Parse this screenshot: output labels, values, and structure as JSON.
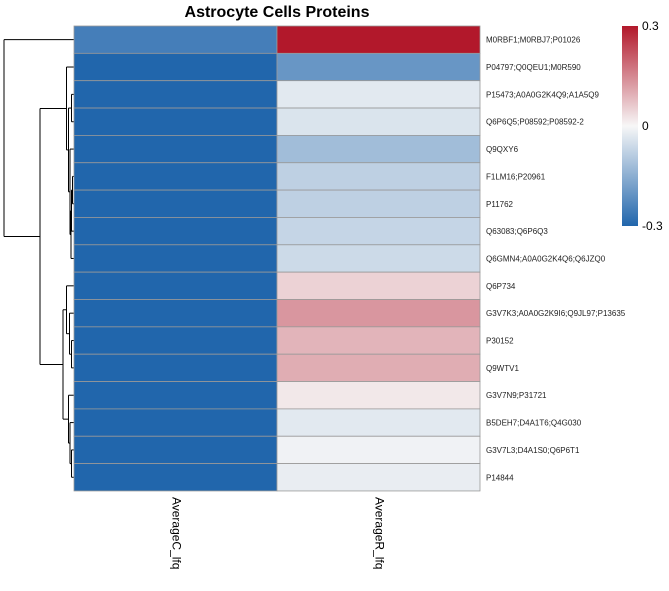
{
  "chart_data": {
    "type": "heatmap",
    "title": "Astrocyte Cells Proteins",
    "columns": [
      "AverageC_lfq",
      "AverageR_lfq"
    ],
    "rows": [
      "M0RBF1;M0RBJ7;P01026",
      "P04797;Q0QEU1;M0R590",
      "P15473;A0A0G2K4Q9;A1A5Q9",
      "Q6P6Q5;P08592;P08592-2",
      "Q9QXY6",
      "F1LM16;P20961",
      "P11762",
      "Q63083;Q6P6Q3",
      "Q6GMN4;A0A0G2K4Q6;Q6JZQ0",
      "Q6P734",
      "G3V7K3;A0A0G2K9I6;Q9JL97;P13635",
      "P30152",
      "Q9WTV1",
      "G3V7N9;P31721",
      "B5DEH7;D4A1T6;Q4G030",
      "G3V7L3;D4A1S0;Q6P6T1",
      "P14844"
    ],
    "values": [
      [
        -0.25,
        0.3
      ],
      [
        -0.32,
        -0.2
      ],
      [
        -0.32,
        -0.03
      ],
      [
        -0.32,
        -0.04
      ],
      [
        -0.32,
        -0.12
      ],
      [
        -0.32,
        -0.08
      ],
      [
        -0.32,
        -0.08
      ],
      [
        -0.32,
        -0.07
      ],
      [
        -0.32,
        -0.06
      ],
      [
        -0.32,
        0.05
      ],
      [
        -0.32,
        0.13
      ],
      [
        -0.32,
        0.09
      ],
      [
        -0.32,
        0.1
      ],
      [
        -0.32,
        0.02
      ],
      [
        -0.32,
        -0.03
      ],
      [
        -0.32,
        -0.01
      ],
      [
        -0.32,
        -0.02
      ]
    ],
    "color_scale": {
      "min": -0.3,
      "max": 0.3,
      "ticks": [
        0.3,
        0,
        -0.3
      ],
      "tick_labels": [
        "0.3",
        "0",
        "-0.3"
      ],
      "low_color": "#2166ac",
      "mid_color": "#f7f7f7",
      "high_color": "#b2182b"
    },
    "row_dendrogram": true,
    "column_dendrogram": false,
    "grid_color": "#999999"
  }
}
